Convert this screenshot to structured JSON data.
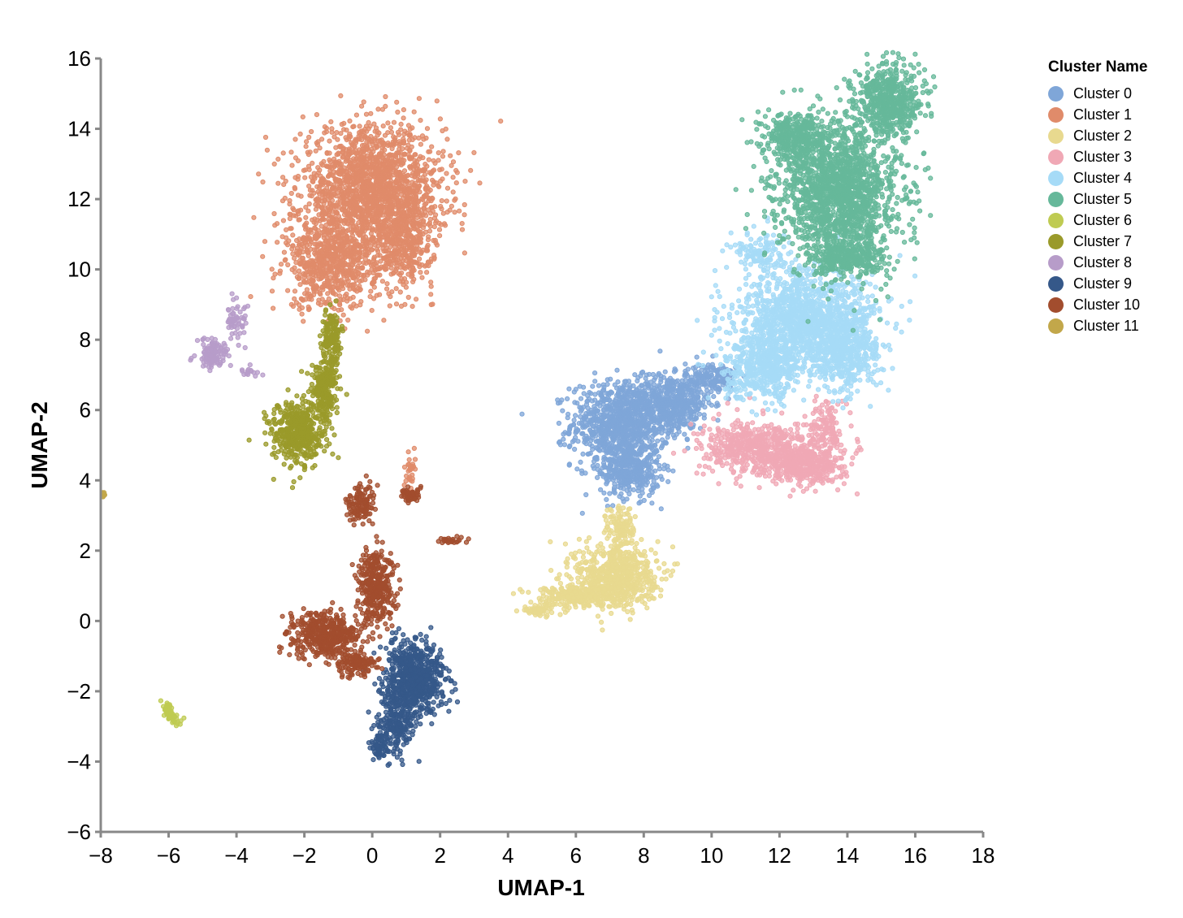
{
  "chart_data": {
    "type": "scatter",
    "xlabel": "UMAP-1",
    "ylabel": "UMAP-2",
    "xlim": [
      -8,
      18
    ],
    "ylim": [
      -6,
      16
    ],
    "xticks": [
      -8,
      -6,
      -4,
      -2,
      0,
      2,
      4,
      6,
      8,
      10,
      12,
      14,
      16,
      18
    ],
    "yticks": [
      -6,
      -4,
      -2,
      0,
      2,
      4,
      6,
      8,
      10,
      12,
      14,
      16
    ],
    "xtick_labels": [
      "−8",
      "−6",
      "−4",
      "−2",
      "0",
      "2",
      "4",
      "6",
      "8",
      "10",
      "12",
      "14",
      "16",
      "18"
    ],
    "ytick_labels": [
      "−6",
      "−4",
      "−2",
      "0",
      "2",
      "4",
      "6",
      "8",
      "10",
      "12",
      "14",
      "16"
    ],
    "grid": false,
    "legend": {
      "title": "Cluster Name",
      "placement": "top-right"
    },
    "series": [
      {
        "name": "Cluster 0",
        "color": "#7fa6d8",
        "regions": [
          {
            "cx": 7.3,
            "cy": 5.6,
            "rx": 1.3,
            "ry": 1.1,
            "n": 900
          },
          {
            "cx": 8.8,
            "cy": 6.2,
            "rx": 1.1,
            "ry": 0.7,
            "n": 500
          },
          {
            "cx": 7.6,
            "cy": 4.3,
            "rx": 0.8,
            "ry": 0.7,
            "n": 350
          },
          {
            "cx": 10.0,
            "cy": 6.9,
            "rx": 0.7,
            "ry": 0.4,
            "n": 180
          }
        ]
      },
      {
        "name": "Cluster 1",
        "color": "#e08b6a",
        "regions": [
          {
            "cx": 0.0,
            "cy": 12.3,
            "rx": 1.9,
            "ry": 1.6,
            "n": 1700
          },
          {
            "cx": -1.2,
            "cy": 10.2,
            "rx": 1.2,
            "ry": 1.2,
            "n": 700
          },
          {
            "cx": 0.9,
            "cy": 10.8,
            "rx": 0.8,
            "ry": 1.2,
            "n": 400
          },
          {
            "cx": 1.1,
            "cy": 4.2,
            "rx": 0.15,
            "ry": 0.5,
            "n": 30
          }
        ]
      },
      {
        "name": "Cluster 2",
        "color": "#e8d98f",
        "regions": [
          {
            "cx": 7.2,
            "cy": 1.3,
            "rx": 1.1,
            "ry": 0.8,
            "n": 650
          },
          {
            "cx": 6.0,
            "cy": 0.7,
            "rx": 1.2,
            "ry": 0.3,
            "n": 250
          },
          {
            "cx": 4.9,
            "cy": 0.3,
            "rx": 0.4,
            "ry": 0.15,
            "n": 60
          },
          {
            "cx": 7.3,
            "cy": 2.6,
            "rx": 0.4,
            "ry": 0.6,
            "n": 120
          }
        ]
      },
      {
        "name": "Cluster 3",
        "color": "#f0a8b5",
        "regions": [
          {
            "cx": 11.5,
            "cy": 4.9,
            "rx": 1.6,
            "ry": 0.7,
            "n": 600
          },
          {
            "cx": 12.8,
            "cy": 4.4,
            "rx": 1.0,
            "ry": 0.5,
            "n": 350
          },
          {
            "cx": 13.4,
            "cy": 5.5,
            "rx": 0.4,
            "ry": 0.7,
            "n": 120
          }
        ]
      },
      {
        "name": "Cluster 4",
        "color": "#a6dbf7",
        "regions": [
          {
            "cx": 12.8,
            "cy": 8.5,
            "rx": 1.8,
            "ry": 1.4,
            "n": 1400
          },
          {
            "cx": 11.5,
            "cy": 7.2,
            "rx": 1.0,
            "ry": 0.8,
            "n": 450
          },
          {
            "cx": 14.0,
            "cy": 7.6,
            "rx": 0.8,
            "ry": 1.0,
            "n": 350
          },
          {
            "cx": 11.4,
            "cy": 10.5,
            "rx": 0.7,
            "ry": 0.6,
            "n": 120
          }
        ]
      },
      {
        "name": "Cluster 5",
        "color": "#66b89a",
        "regions": [
          {
            "cx": 13.8,
            "cy": 12.2,
            "rx": 1.6,
            "ry": 1.8,
            "n": 1700
          },
          {
            "cx": 15.2,
            "cy": 14.8,
            "rx": 0.9,
            "ry": 0.9,
            "n": 550
          },
          {
            "cx": 12.5,
            "cy": 13.8,
            "rx": 0.8,
            "ry": 0.6,
            "n": 350
          },
          {
            "cx": 14.0,
            "cy": 10.3,
            "rx": 1.0,
            "ry": 0.5,
            "n": 300
          }
        ]
      },
      {
        "name": "Cluster 6",
        "color": "#bfcb52",
        "regions": [
          {
            "cx": -6.0,
            "cy": -2.6,
            "rx": 0.35,
            "ry": 0.15,
            "n": 70,
            "tilt": -0.9
          }
        ]
      },
      {
        "name": "Cluster 7",
        "color": "#9a9a2a",
        "regions": [
          {
            "cx": -2.2,
            "cy": 5.3,
            "rx": 0.7,
            "ry": 0.8,
            "n": 450
          },
          {
            "cx": -1.4,
            "cy": 6.6,
            "rx": 0.35,
            "ry": 0.9,
            "n": 250
          },
          {
            "cx": -1.2,
            "cy": 8.0,
            "rx": 0.25,
            "ry": 0.8,
            "n": 150
          }
        ]
      },
      {
        "name": "Cluster 8",
        "color": "#b79cc9",
        "regions": [
          {
            "cx": -4.7,
            "cy": 7.6,
            "rx": 0.4,
            "ry": 0.4,
            "n": 130
          },
          {
            "cx": -4.0,
            "cy": 8.6,
            "rx": 0.35,
            "ry": 0.5,
            "n": 60
          },
          {
            "cx": -3.6,
            "cy": 7.1,
            "rx": 0.3,
            "ry": 0.1,
            "n": 15
          }
        ]
      },
      {
        "name": "Cluster 9",
        "color": "#355889",
        "regions": [
          {
            "cx": 1.3,
            "cy": -1.6,
            "rx": 0.8,
            "ry": 0.9,
            "n": 650
          },
          {
            "cx": 0.7,
            "cy": -2.8,
            "rx": 0.5,
            "ry": 0.8,
            "n": 250
          },
          {
            "cx": 0.2,
            "cy": -3.6,
            "rx": 0.3,
            "ry": 0.3,
            "n": 60
          }
        ]
      },
      {
        "name": "Cluster 10",
        "color": "#a24d2e",
        "regions": [
          {
            "cx": -1.4,
            "cy": -0.4,
            "rx": 0.9,
            "ry": 0.6,
            "n": 450
          },
          {
            "cx": 0.1,
            "cy": 1.0,
            "rx": 0.5,
            "ry": 1.0,
            "n": 350
          },
          {
            "cx": -0.3,
            "cy": 3.3,
            "rx": 0.4,
            "ry": 0.5,
            "n": 120
          },
          {
            "cx": 1.1,
            "cy": 3.6,
            "rx": 0.3,
            "ry": 0.2,
            "n": 50
          },
          {
            "cx": 2.4,
            "cy": 2.3,
            "rx": 0.4,
            "ry": 0.1,
            "n": 25
          },
          {
            "cx": -0.4,
            "cy": -1.2,
            "rx": 0.5,
            "ry": 0.3,
            "n": 120
          }
        ]
      },
      {
        "name": "Cluster 11",
        "color": "#c2a74a",
        "regions": [
          {
            "cx": -7.9,
            "cy": 3.6,
            "rx": 0.08,
            "ry": 0.1,
            "n": 8
          }
        ]
      }
    ]
  }
}
